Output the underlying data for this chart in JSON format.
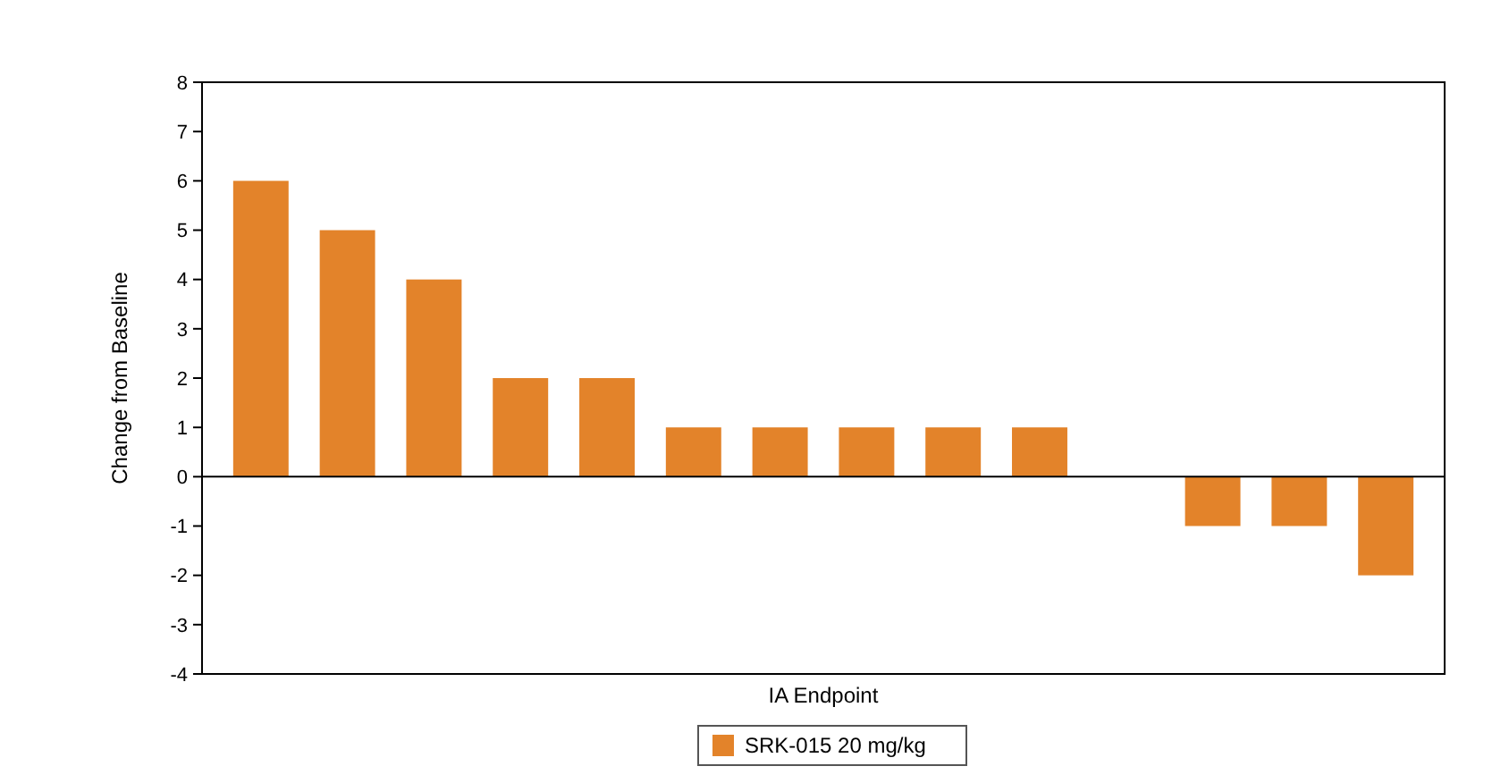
{
  "chart_data": {
    "type": "bar",
    "xlabel": "IA Endpoint",
    "ylabel": "Change from Baseline",
    "categories": [
      null,
      null,
      null,
      null,
      null,
      null,
      null,
      null,
      null,
      null,
      null,
      null,
      null,
      null
    ],
    "series": [
      {
        "name": "SRK-015 20 mg/kg",
        "color": "#e3832a",
        "values": [
          6,
          5,
          4,
          2,
          2,
          1,
          1,
          1,
          1,
          1,
          0,
          -1,
          -1,
          -2
        ]
      }
    ],
    "ylim": [
      -4,
      8
    ],
    "yticks": [
      -4,
      -3,
      -2,
      -1,
      0,
      1,
      2,
      3,
      4,
      5,
      6,
      7,
      8
    ],
    "ref_lines": [
      {
        "axis": "y",
        "value": 0,
        "color": "#000000"
      }
    ],
    "legend": "bottom",
    "grid": false
  }
}
